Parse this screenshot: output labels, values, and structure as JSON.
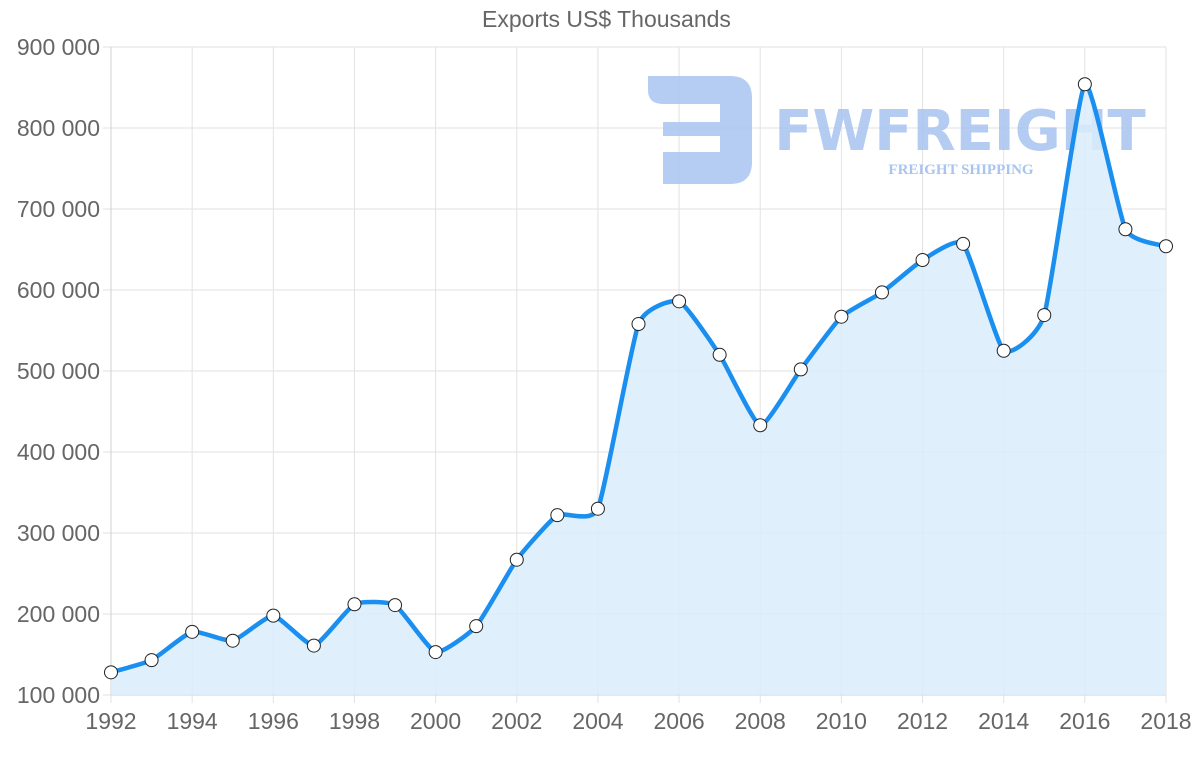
{
  "chart_data": {
    "type": "line",
    "title": "Exports US$ Thousands",
    "xlabel": "",
    "ylabel": "",
    "x": [
      1992,
      1993,
      1994,
      1995,
      1996,
      1997,
      1998,
      1999,
      2000,
      2001,
      2002,
      2003,
      2004,
      2005,
      2006,
      2007,
      2008,
      2009,
      2010,
      2011,
      2012,
      2013,
      2014,
      2015,
      2016,
      2017,
      2018
    ],
    "series": [
      {
        "name": "Exports US$ Thousands",
        "values": [
          128000,
          143000,
          178000,
          167000,
          198000,
          161000,
          212000,
          211000,
          153000,
          185000,
          267000,
          322000,
          330000,
          558000,
          586000,
          520000,
          433000,
          502000,
          567000,
          597000,
          637000,
          657000,
          525000,
          569000,
          854000,
          675000,
          654000
        ],
        "color": "#1a8ff0",
        "fill": "#d9ecfc"
      }
    ],
    "xticks": [
      "1992",
      "1994",
      "1996",
      "1998",
      "2000",
      "2002",
      "2004",
      "2006",
      "2008",
      "2010",
      "2012",
      "2014",
      "2016",
      "2018"
    ],
    "yticks": [
      "100 000",
      "200 000",
      "300 000",
      "400 000",
      "500 000",
      "600 000",
      "700 000",
      "800 000",
      "900 000"
    ],
    "ylim": [
      100000,
      900000
    ],
    "xlim": [
      1992,
      2018
    ],
    "grid": true,
    "legend": null
  },
  "watermark": {
    "brand": "FWFREIGHT",
    "tagline": "FREIGHT SHIPPING",
    "color": "#a8c4f0"
  }
}
